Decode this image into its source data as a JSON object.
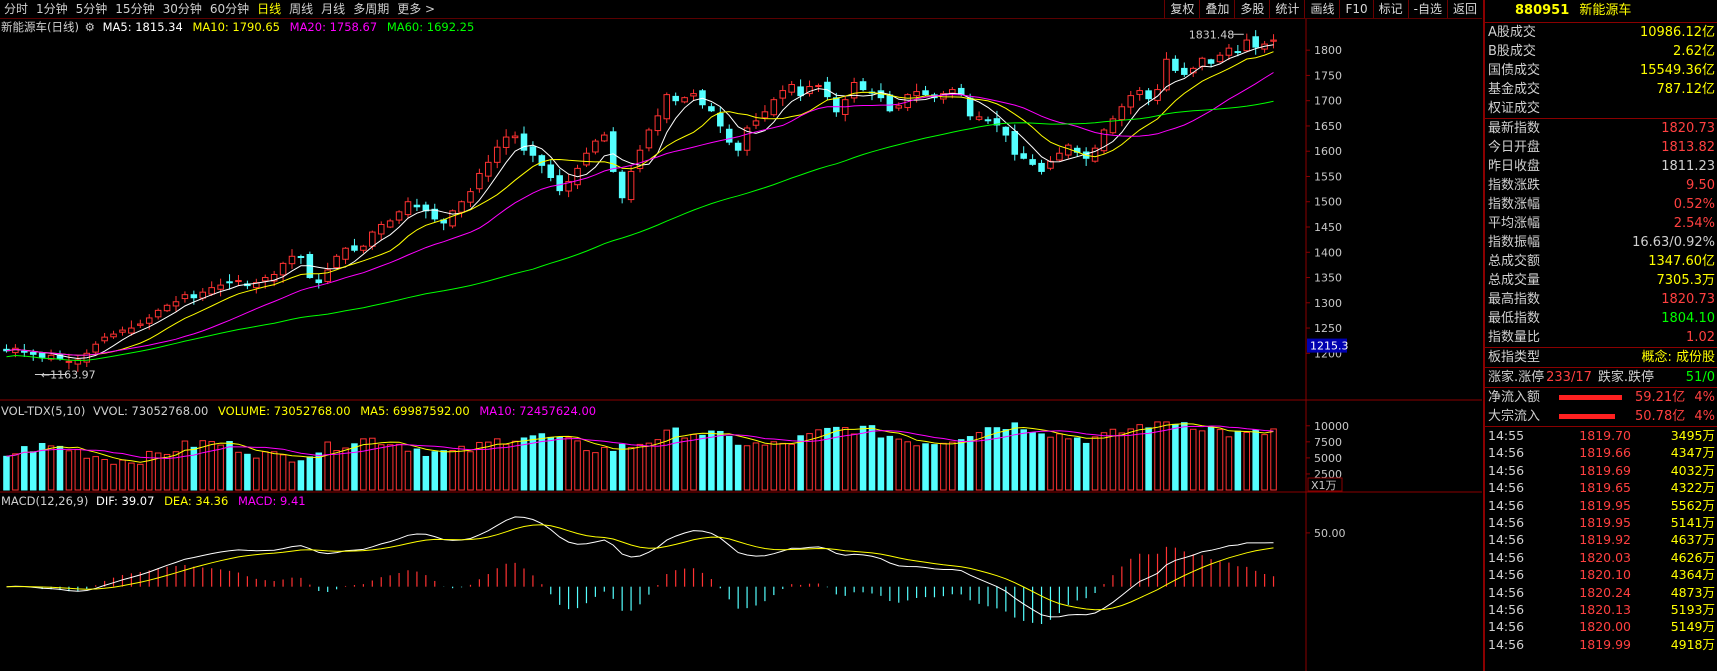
{
  "toolbar": {
    "tabs": [
      "分时",
      "1分钟",
      "5分钟",
      "15分钟",
      "30分钟",
      "60分钟",
      "日线",
      "周线",
      "月线",
      "多周期",
      "更多 >"
    ],
    "active_tab": "日线",
    "right_tools": [
      "复权",
      "叠加",
      "多股",
      "统计",
      "画线",
      "F10",
      "标记",
      "-自选",
      "返回"
    ]
  },
  "main_legend": {
    "title": "新能源车(日线)",
    "ma5": "MA5: 1815.34",
    "ma10": "MA10: 1790.65",
    "ma20": "MA20: 1758.67",
    "ma60": "MA60: 1692.25",
    "colors": {
      "ma5": "#ffffff",
      "ma10": "#ffff00",
      "ma20": "#ff00ff",
      "ma60": "#00ff00"
    }
  },
  "vol_legend": {
    "title": "VOL-TDX(5,10)",
    "vvol": "VVOL: 73052768.00",
    "volume": "VOLUME: 73052768.00",
    "ma5": "MA5: 69987592.00",
    "ma10": "MA10: 72457624.00"
  },
  "macd_legend": {
    "title": "MACD(12,26,9)",
    "dif": "DIF: 39.07",
    "dea": "DEA: 34.36",
    "macd": "MACD: 9.41"
  },
  "annotations": {
    "high": "1831.48",
    "low": "1163.97",
    "cursor_price": "1215.3",
    "vol_unit": "X1万"
  },
  "chart_data": {
    "type": "candlestick",
    "main_axis": {
      "ylim": [
        1163,
        1832
      ],
      "ticks": [
        1800,
        1750,
        1700,
        1650,
        1600,
        1550,
        1500,
        1450,
        1400,
        1350,
        1300,
        1250,
        1200
      ]
    },
    "vol_axis": {
      "ylim": [
        0,
        10900
      ],
      "ticks": [
        10000,
        7500,
        5000,
        2500
      ]
    },
    "macd_axis": {
      "ylim": [
        -70,
        75
      ],
      "ticks": [
        50.0
      ]
    },
    "closes": [
      1205,
      1210,
      1203,
      1198,
      1192,
      1196,
      1190,
      1184,
      1187,
      1200,
      1218,
      1232,
      1238,
      1246,
      1250,
      1258,
      1270,
      1285,
      1295,
      1302,
      1316,
      1310,
      1321,
      1330,
      1335,
      1340,
      1344,
      1334,
      1340,
      1350,
      1356,
      1378,
      1392,
      1390,
      1350,
      1340,
      1365,
      1392,
      1408,
      1404,
      1412,
      1440,
      1455,
      1462,
      1480,
      1500,
      1490,
      1482,
      1466,
      1458,
      1482,
      1500,
      1520,
      1556,
      1578,
      1608,
      1628,
      1630,
      1602,
      1592,
      1572,
      1548,
      1522,
      1540,
      1566,
      1596,
      1620,
      1632,
      1560,
      1508,
      1560,
      1602,
      1642,
      1670,
      1712,
      1700,
      1706,
      1714,
      1692,
      1680,
      1650,
      1618,
      1602,
      1646,
      1660,
      1678,
      1702,
      1720,
      1732,
      1710,
      1728,
      1730,
      1708,
      1678,
      1702,
      1736,
      1722,
      1716,
      1706,
      1680,
      1690,
      1712,
      1718,
      1712,
      1706,
      1714,
      1722,
      1712,
      1670,
      1668,
      1662,
      1652,
      1632,
      1594,
      1586,
      1574,
      1560,
      1580,
      1596,
      1612,
      1598,
      1586,
      1606,
      1642,
      1664,
      1688,
      1710,
      1720,
      1704,
      1722,
      1782,
      1760,
      1752,
      1764,
      1784,
      1774,
      1790,
      1804,
      1796,
      1820,
      1806,
      1812,
      1820
    ]
  }
}
